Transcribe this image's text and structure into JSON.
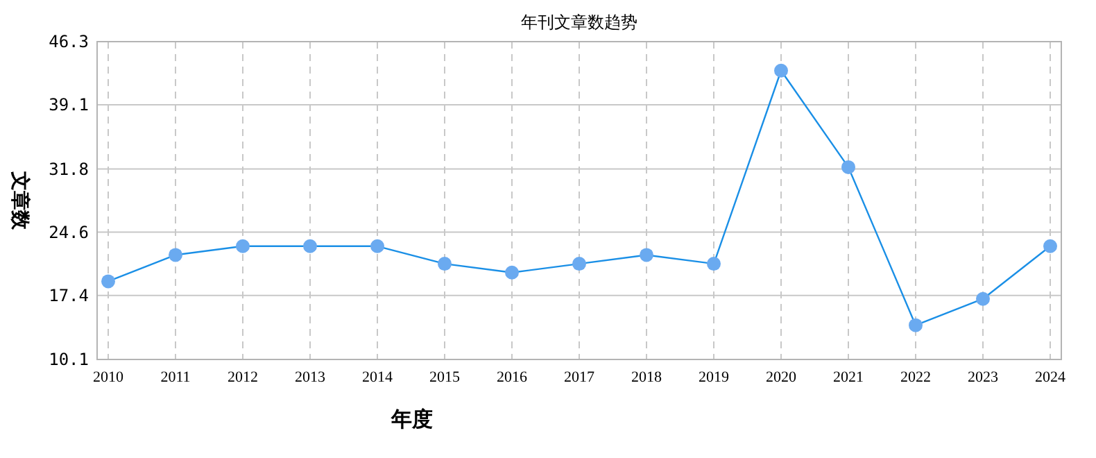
{
  "chart_data": {
    "type": "line",
    "title": "年刊文章数趋势",
    "xlabel": "年度",
    "ylabel": "文章数",
    "categories": [
      "2010",
      "2011",
      "2012",
      "2013",
      "2014",
      "2015",
      "2016",
      "2017",
      "2018",
      "2019",
      "2020",
      "2021",
      "2022",
      "2023",
      "2024"
    ],
    "series": [
      {
        "color": "#1a8fe6",
        "values": [
          19,
          22,
          23,
          23,
          23,
          21,
          20,
          21,
          22,
          21,
          43,
          32,
          14,
          17,
          23
        ]
      }
    ],
    "ylim": [
      10.1,
      46.3
    ],
    "yticks": [
      10.1,
      17.4,
      24.6,
      31.8,
      39.1,
      46.3
    ],
    "grid": true,
    "marker": "circle"
  }
}
